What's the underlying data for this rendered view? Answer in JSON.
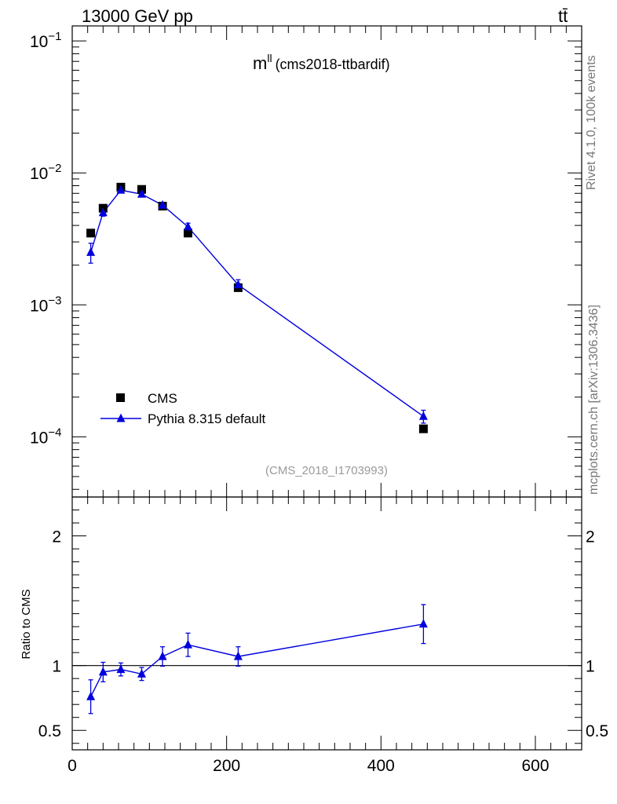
{
  "header": {
    "energy_label": "13000 GeV pp",
    "process_label": "tt̄"
  },
  "side_labels": {
    "generator_info": "Rivet 4.1.0,  100k events",
    "source_info": "mcplots.cern.ch [arXiv:1306.3436]"
  },
  "colors": {
    "data": "#000000",
    "mc": "#0000dd",
    "watermark": "#9a9a9a"
  },
  "chart_data": [
    {
      "type": "scatter",
      "panel": "main",
      "title_main": "m",
      "title_sup": "ll",
      "title_suffix": "(cms2018-ttbardif)",
      "watermark": "(CMS_2018_I1703993)",
      "yscale": "log",
      "ylim": [
        3.5e-05,
        0.13
      ],
      "xlim": [
        0,
        660
      ],
      "ytick_labels": [
        {
          "base": "10",
          "exp": "−1",
          "value": 0.1
        },
        {
          "base": "10",
          "exp": "−2",
          "value": 0.01
        },
        {
          "base": "10",
          "exp": "−3",
          "value": 0.001
        },
        {
          "base": "10",
          "exp": "−4",
          "value": 0.0001
        }
      ],
      "legend_position": "bottom-left",
      "series": [
        {
          "name": "CMS",
          "marker": "square",
          "x": [
            24,
            40,
            63,
            90,
            117,
            150,
            215,
            455
          ],
          "y": [
            0.0035,
            0.0054,
            0.0078,
            0.0075,
            0.0056,
            0.0035,
            0.00135,
            0.000115
          ]
        },
        {
          "name": "Pythia 8.315 default",
          "marker": "triangle",
          "line": true,
          "x": [
            24,
            40,
            63,
            90,
            117,
            150,
            215,
            455
          ],
          "y": [
            0.0025,
            0.005,
            0.0074,
            0.0069,
            0.0057,
            0.0039,
            0.00142,
            0.000143
          ],
          "yerr_low": [
            0.00043,
            0.0003,
            0.00027,
            0.00027,
            0.00028,
            0.00026,
            0.00013,
            1.6e-05
          ],
          "yerr_high": [
            0.00043,
            0.0003,
            0.00027,
            0.00027,
            0.00028,
            0.00026,
            0.00013,
            1.6e-05
          ]
        }
      ]
    },
    {
      "type": "line",
      "panel": "ratio",
      "ylabel": "Ratio to CMS",
      "ylim": [
        0.35,
        2.3
      ],
      "xlim": [
        0,
        660
      ],
      "reference": 1,
      "ytick_labels": [
        "0.5",
        "1",
        "2"
      ],
      "ytick_values": [
        0.5,
        1,
        2
      ],
      "xtick_labels": [
        "0",
        "200",
        "400",
        "600"
      ],
      "xtick_values": [
        0,
        200,
        400,
        600
      ],
      "series": [
        {
          "name": "Pythia 8.315 default / CMS",
          "x": [
            24,
            40,
            63,
            90,
            117,
            150,
            215,
            455
          ],
          "y": [
            0.76,
            0.95,
            0.97,
            0.935,
            1.07,
            1.16,
            1.07,
            1.32
          ],
          "yerr_low": [
            0.13,
            0.075,
            0.05,
            0.05,
            0.075,
            0.09,
            0.075,
            0.15
          ],
          "yerr_high": [
            0.13,
            0.075,
            0.05,
            0.05,
            0.075,
            0.09,
            0.075,
            0.15
          ]
        }
      ]
    }
  ]
}
